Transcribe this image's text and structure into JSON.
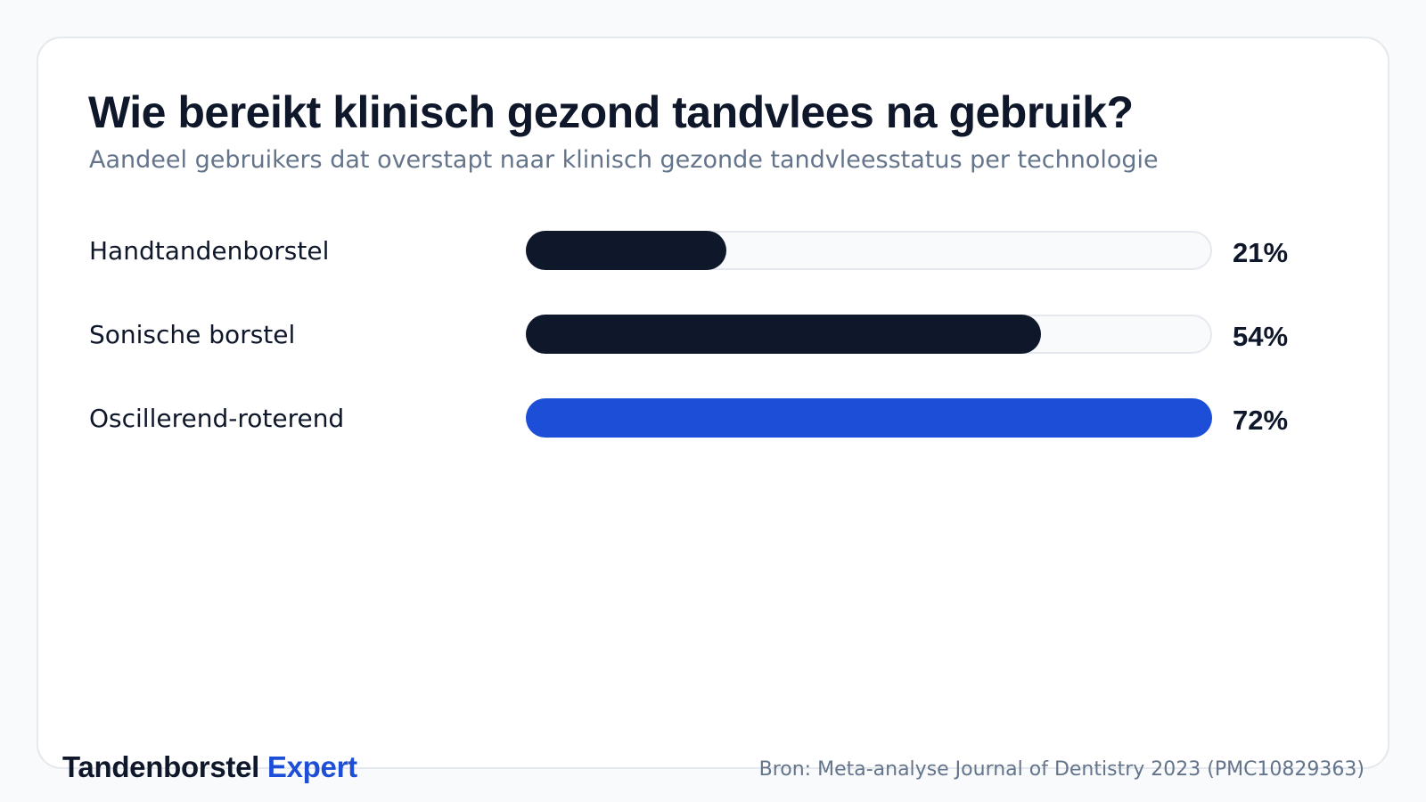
{
  "brand": {
    "name": "Tandenborstel",
    "accent": "Expert",
    "accent_color": "#1d4ed8"
  },
  "source": "Bron: Meta-analyse Journal of Dentistry 2023 (PMC10829363)",
  "colors": {
    "default_bar": "#0f172a",
    "highlight_bar": "#1d4ed8",
    "track": "#f8fafc"
  },
  "chart_data": {
    "type": "bar",
    "orientation": "horizontal",
    "title": "Wie bereikt klinisch gezond tandvlees na gebruik?",
    "subtitle": "Aandeel gebruikers dat overstapt naar klinisch gezonde tandvleesstatus per technologie",
    "categories": [
      "Handtandenborstel",
      "Sonische borstel",
      "Oscillerend-roterend"
    ],
    "values": [
      21,
      54,
      72
    ],
    "value_labels": [
      "21%",
      "54%",
      "72%"
    ],
    "highlight_index": 2,
    "xlim": [
      0,
      72
    ],
    "grid": false,
    "legend": "none"
  }
}
